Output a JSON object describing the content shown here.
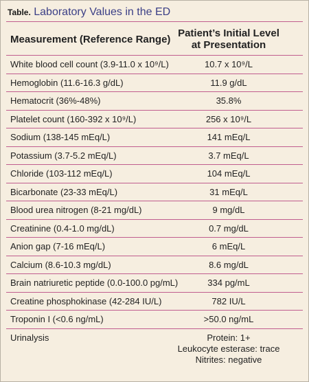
{
  "table": {
    "label": "Table.",
    "title": "Laboratory Values in the ED",
    "headers": {
      "measurement": "Measurement (Reference Range)",
      "level_line1": "Patient’s Initial Level",
      "level_line2": "at Presentation"
    },
    "rows": [
      {
        "measurement": "White blood cell count (3.9-11.0 x 10⁹/L)",
        "value": "10.7 x 10⁹/L"
      },
      {
        "measurement": "Hemoglobin (11.6-16.3 g/dL)",
        "value": "11.9 g/dL"
      },
      {
        "measurement": "Hematocrit (36%-48%)",
        "value": "35.8%"
      },
      {
        "measurement": "Platelet count (160-392 x 10⁹/L)",
        "value": "256 x 10⁹/L"
      },
      {
        "measurement": "Sodium (138-145 mEq/L)",
        "value": "141 mEq/L"
      },
      {
        "measurement": "Potassium (3.7-5.2 mEq/L)",
        "value": "3.7 mEq/L"
      },
      {
        "measurement": "Chloride (103-112 mEq/L)",
        "value": "104 mEq/L"
      },
      {
        "measurement": "Bicarbonate (23-33 mEq/L)",
        "value": "31 mEq/L"
      },
      {
        "measurement": "Blood urea nitrogen (8-21 mg/dL)",
        "value": "9 mg/dL"
      },
      {
        "measurement": "Creatinine (0.4-1.0 mg/dL)",
        "value": "0.7 mg/dL"
      },
      {
        "measurement": "Anion gap (7-16 mEq/L)",
        "value": "6 mEq/L"
      },
      {
        "measurement": "Calcium (8.6-10.3 mg/dL)",
        "value": "8.6 mg/dL"
      },
      {
        "measurement": "Brain natriuretic peptide (0.0-100.0 pg/mL)",
        "value": "334 pg/mL"
      },
      {
        "measurement": "Creatine phosphokinase (42-284 IU/L)",
        "value": "782 IU/L"
      },
      {
        "measurement": "Troponin I (<0.6 ng/mL)",
        "value": ">50.0 ng/mL"
      }
    ],
    "urinalysis": {
      "measurement": "Urinalysis",
      "values": [
        "Protein: 1+",
        "Leukocyte esterase: trace",
        "Nitrites: negative"
      ]
    }
  }
}
